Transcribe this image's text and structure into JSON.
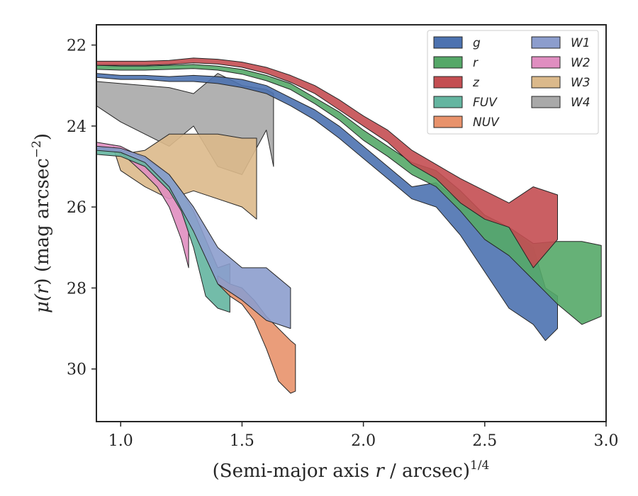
{
  "chart_data": {
    "type": "area",
    "xlabel": "(Semi-major axis r / arcsec)",
    "xlabel_parts": [
      "(Semi-major axis ",
      "r",
      " / arcsec)",
      "1/4"
    ],
    "ylabel": "μ(r) (mag arcsec−2)",
    "ylabel_parts": [
      "μ(",
      "r",
      ") (mag arcsec",
      "−2",
      ")"
    ],
    "xlim": [
      0.9,
      3.0
    ],
    "ylim": [
      31.3,
      21.5
    ],
    "y_inverted": true,
    "x_ticks": [
      1.0,
      1.5,
      2.0,
      2.5,
      3.0
    ],
    "x_tick_labels": [
      "1.0",
      "1.5",
      "2.0",
      "2.5",
      "3.0"
    ],
    "y_ticks": [
      22,
      24,
      26,
      28,
      30
    ],
    "y_tick_labels": [
      "22",
      "24",
      "26",
      "28",
      "30"
    ],
    "grid": false,
    "legend": {
      "position": "top-right",
      "columns": 2
    },
    "series": [
      {
        "name": "g",
        "color": "#4c72b0",
        "x": [
          0.9,
          1.0,
          1.1,
          1.2,
          1.3,
          1.4,
          1.5,
          1.6,
          1.7,
          1.8,
          1.9,
          2.0,
          2.1,
          2.2,
          2.3,
          2.4,
          2.5,
          2.6,
          2.7,
          2.75,
          2.8
        ],
        "y_bright": [
          22.7,
          22.75,
          22.75,
          22.78,
          22.75,
          22.78,
          22.85,
          23.0,
          23.3,
          23.6,
          24.0,
          24.5,
          25.0,
          25.5,
          25.4,
          25.9,
          26.3,
          26.5,
          27.0,
          28.0,
          28.2
        ],
        "y_faint": [
          22.8,
          22.85,
          22.85,
          22.9,
          22.9,
          22.95,
          23.05,
          23.2,
          23.5,
          23.85,
          24.3,
          24.8,
          25.3,
          25.8,
          26.0,
          26.7,
          27.6,
          28.5,
          28.9,
          29.3,
          29.0
        ]
      },
      {
        "name": "r",
        "color": "#55a868",
        "x": [
          0.9,
          1.0,
          1.1,
          1.2,
          1.3,
          1.4,
          1.5,
          1.6,
          1.7,
          1.8,
          1.9,
          2.0,
          2.1,
          2.2,
          2.3,
          2.4,
          2.5,
          2.6,
          2.7,
          2.8,
          2.9,
          2.98
        ],
        "y_bright": [
          22.5,
          22.52,
          22.52,
          22.5,
          22.48,
          22.52,
          22.6,
          22.75,
          22.95,
          23.3,
          23.65,
          24.1,
          24.5,
          24.9,
          25.1,
          25.6,
          26.2,
          26.5,
          26.9,
          26.85,
          26.85,
          26.95
        ],
        "y_faint": [
          22.6,
          22.62,
          22.62,
          22.6,
          22.58,
          22.62,
          22.72,
          22.88,
          23.1,
          23.45,
          23.85,
          24.35,
          24.75,
          25.2,
          25.5,
          26.1,
          26.8,
          27.2,
          27.8,
          28.4,
          28.9,
          28.7
        ]
      },
      {
        "name": "z",
        "color": "#c44e52",
        "x": [
          0.9,
          1.0,
          1.1,
          1.2,
          1.3,
          1.4,
          1.5,
          1.6,
          1.7,
          1.8,
          1.9,
          2.0,
          2.1,
          2.2,
          2.3,
          2.4,
          2.5,
          2.6,
          2.7,
          2.8
        ],
        "y_bright": [
          22.4,
          22.4,
          22.4,
          22.38,
          22.32,
          22.35,
          22.42,
          22.55,
          22.75,
          23.0,
          23.35,
          23.75,
          24.1,
          24.6,
          24.95,
          25.3,
          25.6,
          25.9,
          25.5,
          25.7
        ],
        "y_faint": [
          22.5,
          22.5,
          22.5,
          22.48,
          22.44,
          22.47,
          22.55,
          22.7,
          22.92,
          23.2,
          23.6,
          24.0,
          24.4,
          24.95,
          25.3,
          25.9,
          26.3,
          26.5,
          27.5,
          26.8
        ]
      },
      {
        "name": "FUV",
        "color": "#64b5a0",
        "x": [
          0.9,
          1.0,
          1.1,
          1.2,
          1.25,
          1.3,
          1.35,
          1.4,
          1.45
        ],
        "y_bright": [
          24.55,
          24.6,
          24.8,
          25.2,
          25.6,
          26.1,
          26.8,
          27.5,
          27.4
        ],
        "y_faint": [
          24.7,
          24.75,
          25.0,
          25.6,
          26.1,
          27.0,
          28.2,
          28.5,
          28.6
        ]
      },
      {
        "name": "NUV",
        "color": "#e8926b",
        "x": [
          1.4,
          1.45,
          1.5,
          1.55,
          1.6,
          1.65,
          1.7,
          1.72
        ],
        "y_bright": [
          27.7,
          27.9,
          28.0,
          28.3,
          28.7,
          29.0,
          29.3,
          29.4
        ],
        "y_faint": [
          27.9,
          28.2,
          28.4,
          28.8,
          29.5,
          30.3,
          30.6,
          30.55
        ]
      },
      {
        "name": "W1",
        "color": "#8c9dcd",
        "x": [
          0.9,
          1.0,
          1.1,
          1.2,
          1.3,
          1.4,
          1.5,
          1.6,
          1.7
        ],
        "y_bright": [
          24.5,
          24.55,
          24.75,
          25.2,
          26.0,
          27.0,
          27.5,
          27.5,
          28.0
        ],
        "y_faint": [
          24.6,
          24.65,
          24.9,
          25.5,
          26.6,
          27.9,
          28.3,
          28.8,
          29.0
        ]
      },
      {
        "name": "W2",
        "color": "#e08ec0",
        "x": [
          0.9,
          1.0,
          1.1,
          1.15,
          1.2,
          1.25,
          1.28
        ],
        "y_bright": [
          24.4,
          24.5,
          24.8,
          25.0,
          25.4,
          26.0,
          26.6
        ],
        "y_faint": [
          24.5,
          24.65,
          25.2,
          25.5,
          26.0,
          26.8,
          27.5
        ]
      },
      {
        "name": "W3",
        "color": "#dbb98b",
        "x": [
          0.97,
          1.0,
          1.1,
          1.2,
          1.3,
          1.4,
          1.5,
          1.56
        ],
        "y_bright": [
          24.5,
          24.7,
          24.6,
          24.2,
          24.2,
          24.2,
          24.3,
          24.3
        ],
        "y_faint": [
          24.55,
          25.1,
          25.5,
          25.8,
          25.6,
          25.8,
          26.0,
          26.3
        ]
      },
      {
        "name": "W4",
        "color": "#a9a9a9",
        "x": [
          0.9,
          1.0,
          1.1,
          1.2,
          1.3,
          1.4,
          1.5,
          1.6,
          1.63
        ],
        "y_bright": [
          22.9,
          22.95,
          23.0,
          23.05,
          23.2,
          22.7,
          23.0,
          23.1,
          23.2
        ],
        "y_faint": [
          23.5,
          23.9,
          24.2,
          24.5,
          24.0,
          25.0,
          25.2,
          24.1,
          25.0
        ]
      }
    ]
  }
}
